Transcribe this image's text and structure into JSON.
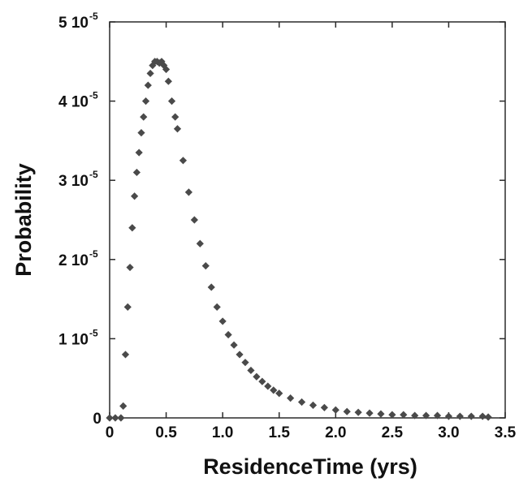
{
  "chart_data": {
    "type": "scatter",
    "xlabel": "ResidenceTime (yrs)",
    "ylabel": "Probability",
    "xlim": [
      0,
      3.5
    ],
    "ylim": [
      0,
      5e-05
    ],
    "grid": false,
    "marker": "diamond",
    "marker_color": "#4a4a4a",
    "x_ticks": [
      {
        "value": 0,
        "label": "0"
      },
      {
        "value": 0.5,
        "label": "0.5"
      },
      {
        "value": 1.0,
        "label": "1.0"
      },
      {
        "value": 1.5,
        "label": "1.5"
      },
      {
        "value": 2.0,
        "label": "2.0"
      },
      {
        "value": 2.5,
        "label": "2.5"
      },
      {
        "value": 3.0,
        "label": "3.0"
      },
      {
        "value": 3.5,
        "label": "3.5"
      }
    ],
    "y_ticks": [
      {
        "value": 0,
        "mantissa": "0",
        "exponent": ""
      },
      {
        "value": 1e-05,
        "mantissa": "1 10",
        "exponent": "-5"
      },
      {
        "value": 2e-05,
        "mantissa": "2 10",
        "exponent": "-5"
      },
      {
        "value": 3e-05,
        "mantissa": "3 10",
        "exponent": "-5"
      },
      {
        "value": 4e-05,
        "mantissa": "4 10",
        "exponent": "-5"
      },
      {
        "value": 5e-05,
        "mantissa": "5 10",
        "exponent": "-5"
      }
    ],
    "series": [
      {
        "x": [
          0.0,
          0.05,
          0.1,
          0.12,
          0.14,
          0.16,
          0.18,
          0.2,
          0.22,
          0.24,
          0.26,
          0.28,
          0.3,
          0.32,
          0.34,
          0.36,
          0.38,
          0.4,
          0.42,
          0.44,
          0.46,
          0.48,
          0.5,
          0.52,
          0.55,
          0.58,
          0.6,
          0.65,
          0.7,
          0.75,
          0.8,
          0.85,
          0.9,
          0.95,
          1.0,
          1.05,
          1.1,
          1.15,
          1.2,
          1.25,
          1.3,
          1.35,
          1.4,
          1.45,
          1.5,
          1.6,
          1.7,
          1.8,
          1.9,
          2.0,
          2.1,
          2.2,
          2.3,
          2.4,
          2.5,
          2.6,
          2.7,
          2.8,
          2.9,
          3.0,
          3.1,
          3.2,
          3.3,
          3.35
        ],
        "y": [
          0,
          0,
          0,
          1.5e-06,
          8e-06,
          1.4e-05,
          1.9e-05,
          2.4e-05,
          2.8e-05,
          3.1e-05,
          3.35e-05,
          3.6e-05,
          3.8e-05,
          4e-05,
          4.2e-05,
          4.35e-05,
          4.45e-05,
          4.5e-05,
          4.5e-05,
          4.48e-05,
          4.5e-05,
          4.45e-05,
          4.4e-05,
          4.25e-05,
          4e-05,
          3.8e-05,
          3.65e-05,
          3.25e-05,
          2.85e-05,
          2.5e-05,
          2.2e-05,
          1.92e-05,
          1.65e-05,
          1.4e-05,
          1.22e-05,
          1.05e-05,
          9.2e-06,
          8e-06,
          7e-06,
          6e-06,
          5.2e-06,
          4.6e-06,
          4e-06,
          3.5e-06,
          3.1e-06,
          2.5e-06,
          2e-06,
          1.6e-06,
          1.3e-06,
          1e-06,
          8e-07,
          7e-07,
          6e-07,
          5e-07,
          4e-07,
          4e-07,
          3e-07,
          3e-07,
          3e-07,
          2e-07,
          2e-07,
          2e-07,
          2e-07,
          1e-07
        ]
      }
    ]
  }
}
